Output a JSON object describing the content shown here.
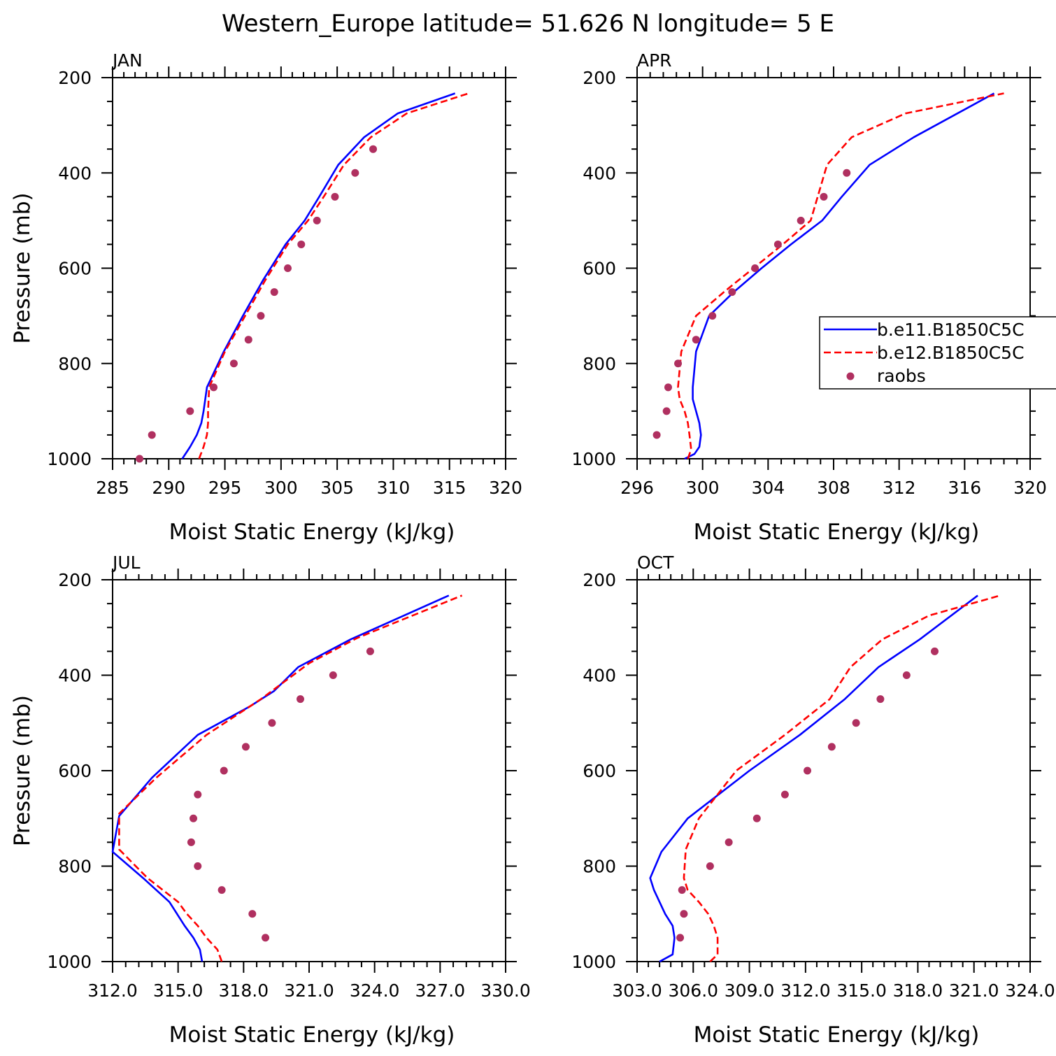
{
  "figure_title": "Western_Europe  latitude= 51.626 N longitude= 5 E",
  "legend": {
    "entries": [
      {
        "label": "b.e11.B1850C5C",
        "color": "#0000ff",
        "style": "solid"
      },
      {
        "label": "b.e12.B1850C5C",
        "color": "#ff0000",
        "style": "dashed"
      },
      {
        "label": "raobs",
        "color": "#b03060",
        "style": "marker"
      }
    ]
  },
  "chart_data": [
    {
      "type": "line",
      "panel": "JAN",
      "xlabel": "Moist Static Energy (kJ/kg)",
      "ylabel": "Pressure (mb)",
      "xlim": [
        285,
        320
      ],
      "ylim": [
        1000,
        200
      ],
      "xticks": [
        285,
        290,
        295,
        300,
        305,
        310,
        315,
        320
      ],
      "xtick_labels": [
        "285",
        "290",
        "295",
        "300",
        "305",
        "310",
        "315",
        "320"
      ],
      "yticks": [
        200,
        400,
        600,
        800,
        1000
      ],
      "ytick_labels": [
        "200",
        "400",
        "600",
        "800",
        "1000"
      ],
      "series": [
        {
          "name": "b.e11.B1850C5C",
          "color": "#0000ff",
          "style": "solid",
          "x": [
            291.2,
            291.9,
            292.5,
            292.9,
            293.1,
            293.4,
            294.9,
            296.6,
            298.4,
            300.4,
            302.1,
            303.4,
            305.1,
            307.4,
            310.4,
            315.5
          ],
          "y": [
            1000,
            975,
            950,
            925,
            900,
            850,
            775,
            700,
            625,
            550,
            500,
            450,
            383,
            325,
            275,
            233
          ]
        },
        {
          "name": "b.e12.B1850C5C",
          "color": "#ff0000",
          "style": "dashed",
          "x": [
            292.7,
            293.1,
            293.4,
            293.5,
            293.5,
            293.6,
            295.0,
            296.8,
            298.6,
            300.6,
            302.4,
            303.8,
            305.6,
            308.0,
            311.2,
            316.7
          ],
          "y": [
            1000,
            975,
            950,
            925,
            900,
            850,
            775,
            700,
            625,
            550,
            500,
            450,
            383,
            325,
            275,
            233
          ]
        },
        {
          "name": "raobs",
          "color": "#b03060",
          "style": "marker",
          "x": [
            287.4,
            288.5,
            291.9,
            294.0,
            295.8,
            297.1,
            298.2,
            299.4,
            300.6,
            301.8,
            303.2,
            304.8,
            306.6,
            308.2
          ],
          "y": [
            1000,
            950,
            900,
            850,
            800,
            750,
            700,
            650,
            600,
            550,
            500,
            450,
            400,
            350
          ]
        }
      ]
    },
    {
      "type": "line",
      "panel": "APR",
      "xlabel": "Moist Static Energy (kJ/kg)",
      "ylabel": "",
      "xlim": [
        296,
        320
      ],
      "ylim": [
        1000,
        200
      ],
      "xticks": [
        296,
        300,
        304,
        308,
        312,
        316,
        320
      ],
      "xtick_labels": [
        "296",
        "300",
        "304",
        "308",
        "312",
        "316",
        "320"
      ],
      "yticks": [
        200,
        400,
        600,
        800,
        1000
      ],
      "ytick_labels": [
        "200",
        "400",
        "600",
        "800",
        "1000"
      ],
      "series": [
        {
          "name": "b.e11.B1850C5C",
          "color": "#0000ff",
          "style": "solid",
          "x": [
            298.9,
            299.5,
            299.8,
            299.9,
            299.8,
            299.6,
            299.4,
            299.4,
            299.6,
            300.4,
            301.9,
            303.6,
            305.4,
            307.3,
            308.5,
            310.2,
            312.9,
            317.8
          ],
          "y": [
            1000,
            990,
            975,
            950,
            925,
            900,
            875,
            850,
            775,
            700,
            650,
            600,
            550,
            500,
            450,
            383,
            325,
            233
          ]
        },
        {
          "name": "b.e12.B1850C5C",
          "color": "#ff0000",
          "style": "dashed",
          "x": [
            299.1,
            299.3,
            299.2,
            299.1,
            298.9,
            298.6,
            298.5,
            298.7,
            299.6,
            301.3,
            303.1,
            304.9,
            306.6,
            307.6,
            309.1,
            312.4,
            318.4
          ],
          "y": [
            1000,
            980,
            950,
            925,
            900,
            875,
            850,
            775,
            700,
            650,
            600,
            550,
            500,
            383,
            325,
            275,
            233
          ]
        },
        {
          "name": "raobs",
          "color": "#b03060",
          "style": "marker",
          "x": [
            297.2,
            297.8,
            297.9,
            298.5,
            299.6,
            300.6,
            301.8,
            303.2,
            304.6,
            306.0,
            307.4,
            308.8
          ],
          "y": [
            950,
            900,
            850,
            800,
            750,
            700,
            650,
            600,
            550,
            500,
            450,
            400
          ]
        }
      ]
    },
    {
      "type": "line",
      "panel": "JUL",
      "xlabel": "Moist Static Energy (kJ/kg)",
      "ylabel": "Pressure (mb)",
      "xlim": [
        312,
        330
      ],
      "ylim": [
        1000,
        200
      ],
      "xticks": [
        312,
        315,
        318,
        321,
        324,
        327,
        330
      ],
      "xtick_labels": [
        "312.0",
        "315.0",
        "318.0",
        "321.0",
        "324.0",
        "327.0",
        "330.0"
      ],
      "yticks": [
        200,
        400,
        600,
        800,
        1000
      ],
      "ytick_labels": [
        "200",
        "400",
        "600",
        "800",
        "1000"
      ],
      "series": [
        {
          "name": "b.e11.B1850C5C",
          "color": "#0000ff",
          "style": "solid",
          "x": [
            316.1,
            316.0,
            315.7,
            315.3,
            314.6,
            313.4,
            312.0,
            312.3,
            313.8,
            315.9,
            318.3,
            319.4,
            320.5,
            322.9,
            327.4
          ],
          "y": [
            1000,
            975,
            950,
            925,
            875,
            825,
            770,
            695,
            615,
            525,
            465,
            433,
            383,
            325,
            233
          ]
        },
        {
          "name": "b.e12.B1850C5C",
          "color": "#ff0000",
          "style": "dashed",
          "x": [
            317.0,
            316.8,
            316.3,
            315.9,
            315.4,
            315.0,
            313.6,
            312.3,
            312.3,
            314.0,
            316.3,
            318.8,
            321.0,
            323.2,
            328.0
          ],
          "y": [
            1000,
            975,
            950,
            925,
            900,
            875,
            825,
            765,
            690,
            615,
            525,
            450,
            375,
            322,
            233
          ]
        },
        {
          "name": "raobs",
          "color": "#b03060",
          "style": "marker",
          "x": [
            319.0,
            318.4,
            317.0,
            315.9,
            315.6,
            315.7,
            315.9,
            317.1,
            318.1,
            319.3,
            320.6,
            322.1,
            323.8
          ],
          "y": [
            950,
            900,
            850,
            800,
            750,
            700,
            650,
            600,
            550,
            500,
            450,
            400,
            350
          ]
        }
      ]
    },
    {
      "type": "line",
      "panel": "OCT",
      "xlabel": "Moist Static Energy (kJ/kg)",
      "ylabel": "",
      "xlim": [
        303,
        324
      ],
      "ylim": [
        1000,
        200
      ],
      "xticks": [
        303,
        306,
        309,
        312,
        315,
        318,
        321,
        324
      ],
      "xtick_labels": [
        "303.0",
        "306.0",
        "309.0",
        "312.0",
        "315.0",
        "318.0",
        "321.0",
        "324.0"
      ],
      "yticks": [
        200,
        400,
        600,
        800,
        1000
      ],
      "ytick_labels": [
        "200",
        "400",
        "600",
        "800",
        "1000"
      ],
      "series": [
        {
          "name": "b.e11.B1850C5C",
          "color": "#0000ff",
          "style": "solid",
          "x": [
            304.2,
            304.9,
            305.0,
            304.9,
            304.5,
            303.9,
            303.7,
            304.3,
            305.7,
            309.0,
            311.7,
            314.1,
            315.9,
            318.1,
            321.2
          ],
          "y": [
            1000,
            985,
            950,
            925,
            900,
            850,
            825,
            770,
            700,
            600,
            525,
            450,
            383,
            325,
            233
          ]
        },
        {
          "name": "b.e12.B1850C5C",
          "color": "#ff0000",
          "style": "dashed",
          "x": [
            306.9,
            307.3,
            307.3,
            307.1,
            306.8,
            306.3,
            305.7,
            305.5,
            305.6,
            306.3,
            308.3,
            310.9,
            313.3,
            314.4,
            316.1,
            318.6,
            322.4
          ],
          "y": [
            1000,
            985,
            950,
            925,
            900,
            875,
            850,
            825,
            765,
            700,
            600,
            525,
            450,
            383,
            325,
            275,
            233
          ]
        },
        {
          "name": "raobs",
          "color": "#b03060",
          "style": "marker",
          "x": [
            305.3,
            305.5,
            305.4,
            306.9,
            307.9,
            309.4,
            310.9,
            312.1,
            313.4,
            314.7,
            316.0,
            317.4,
            318.9
          ],
          "y": [
            950,
            900,
            850,
            800,
            750,
            700,
            650,
            600,
            550,
            500,
            450,
            400,
            350
          ]
        }
      ]
    }
  ]
}
